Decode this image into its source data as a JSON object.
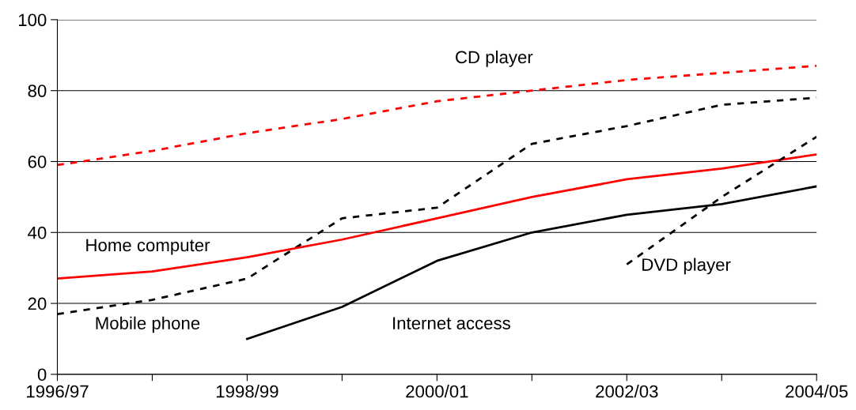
{
  "chart_data": {
    "type": "line",
    "categories": [
      "1996/97",
      null,
      "1998/99",
      null,
      "2000/01",
      null,
      "2002/03",
      null,
      "2004/05"
    ],
    "ylim": [
      0,
      100
    ],
    "yticks": [
      0,
      20,
      40,
      60,
      80,
      100
    ],
    "grid": "y",
    "marker": "none",
    "series": [
      {
        "name": "CD player",
        "color": "#ff0000",
        "line_style": "dashed",
        "values": [
          59,
          63,
          68,
          72,
          77,
          80,
          83,
          85,
          87
        ]
      },
      {
        "name": "Mobile phone",
        "color": "#000000",
        "line_style": "dashed",
        "values": [
          17,
          21,
          27,
          44,
          47,
          65,
          70,
          76,
          78
        ]
      },
      {
        "name": "Home computer",
        "color": "#ff0000",
        "line_style": "solid",
        "values": [
          27,
          29,
          33,
          38,
          44,
          50,
          55,
          58,
          62
        ]
      },
      {
        "name": "Internet access",
        "color": "#000000",
        "line_style": "solid",
        "values": [
          null,
          null,
          10,
          19,
          32,
          40,
          45,
          48,
          53
        ]
      },
      {
        "name": "DVD player",
        "color": "#000000",
        "line_style": "dashed",
        "values": [
          null,
          null,
          null,
          null,
          null,
          null,
          31,
          50,
          67
        ]
      }
    ]
  }
}
